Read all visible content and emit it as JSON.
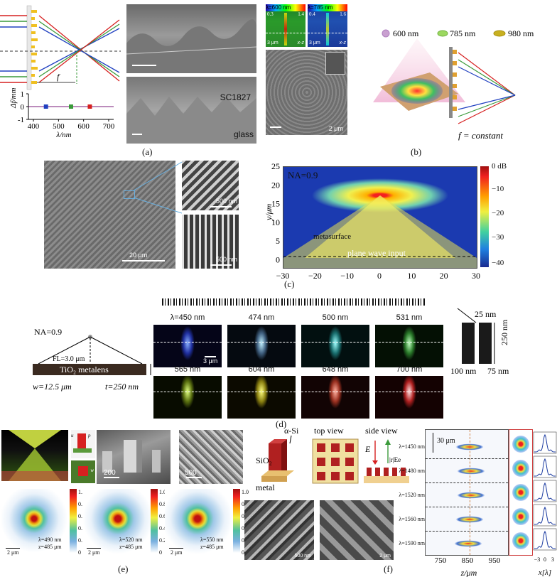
{
  "captions": {
    "a": "(a)",
    "b": "(b)",
    "c": "(c)",
    "d": "(d)",
    "e": "(e)",
    "f": "(f)"
  },
  "panel_a": {
    "focal_label": "f",
    "sem_label_1": "SC1827",
    "sem_label_2": "glass",
    "colors": {
      "red": "#d62020",
      "green": "#3a9a3a",
      "blue": "#2040c0",
      "yellow": "#f0c020"
    }
  },
  "panel_b": {
    "inset1_title": "λ=600 nm",
    "inset1_min": "0.3",
    "inset1_max": "1.4",
    "inset1_axis": "x-z",
    "inset2_title": "λ=785 nm",
    "inset2_min": "0.4",
    "inset2_max": "1.6",
    "inset2_axis": "x-z",
    "scale_1": "3 μm",
    "scale_2": "3 μm",
    "scale_3": "2 μm",
    "legend": [
      "600 nm",
      "785 nm",
      "980 nm"
    ],
    "f_const": "f = constant"
  },
  "panel_c": {
    "scale_main": "20 μm",
    "scale_inset1": "500 nm",
    "scale_inset2": "500 nm",
    "na_label": "NA=0.9",
    "metasurface_label": "metasurface",
    "plane_wave_label": "plane wave input",
    "colorbar_ticks": [
      "0 dB",
      "−10",
      "−20",
      "−30",
      "−40"
    ]
  },
  "panel_d": {
    "na_label": "NA=0.9",
    "fl_label": "FL=3.0 μm",
    "lens_label": "TiO₂ metalens",
    "w_label": "w=12.5 μm",
    "t_label": "t=250 nm",
    "row1": [
      "λ=450 nm",
      "474 nm",
      "500 nm",
      "531 nm"
    ],
    "row2": [
      "565 nm",
      "604 nm",
      "648 nm",
      "700 nm"
    ],
    "scale": "3 μm",
    "dim_25": "25 nm",
    "dim_250": "250 nm",
    "dim_100": "100 nm",
    "dim_75": "75 nm"
  },
  "panel_e": {
    "sem_scale_1": "200",
    "sem_scale_2": "500",
    "maps": [
      {
        "lambda": "λ=490 nm",
        "z": "z=485 μm",
        "scale": "2 μm"
      },
      {
        "lambda": "λ=520 nm",
        "z": "z=485 μm",
        "scale": "2 μm"
      },
      {
        "lambda": "λ=550 nm",
        "z": "z=485 μm",
        "scale": "2 μm"
      }
    ],
    "colorbar_ticks": [
      "1.0",
      "0.8",
      "0.6",
      "0.4",
      "0.2",
      "0"
    ],
    "unit_labels": [
      "u",
      "p",
      "w"
    ]
  },
  "panel_f": {
    "asi": "α-Si",
    "sio2": "SiO₂",
    "metal": "metal",
    "top_view": "top view",
    "side_view": "side view",
    "e_label": "E",
    "r_label": "|r|Ee",
    "sem_scale_1": "500 nm",
    "sem_scale_2": "2 μm",
    "rows": [
      "λ=1450 nm",
      "λ=1480 nm",
      "λ=1520 nm",
      "λ=1560 nm",
      "λ=1590 nm"
    ],
    "dim_30": "30 μm",
    "zlabel": "z/μm",
    "xlabel": "x[λ]"
  },
  "chart_data": [
    {
      "type": "scatter",
      "x": [
        450,
        550,
        625
      ],
      "y": [
        0,
        0,
        0
      ],
      "xlabel": "λ/nm",
      "ylabel": "Δf/mm",
      "xticks": [
        400,
        500,
        600,
        700
      ],
      "yticks": [
        -1,
        0,
        1
      ],
      "xlim": [
        380,
        720
      ],
      "ylim": [
        -1,
        1
      ]
    },
    {
      "type": "heatmap",
      "xlabel": "",
      "ylabel": "y/μm",
      "xlim": [
        -30,
        30
      ],
      "ylim": [
        -2,
        25
      ],
      "xticks": [
        -30,
        -20,
        -10,
        0,
        10,
        20,
        30
      ],
      "yticks": [
        0,
        5,
        10,
        15,
        20,
        25
      ],
      "colorbar_range": [
        -40,
        0
      ]
    },
    {
      "type": "heatmap",
      "xlabel": "z/μm",
      "xticks": [
        750,
        850,
        950
      ],
      "inset_xticks": [
        -3,
        0,
        3
      ]
    }
  ]
}
